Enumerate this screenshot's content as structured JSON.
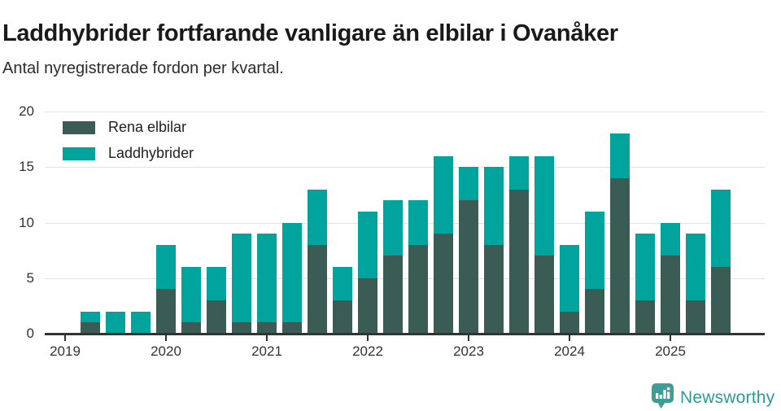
{
  "header": {
    "title": "Laddhybrider fortfarande vanligare än elbilar i Ovanåker",
    "subtitle": "Antal nyregistrerade fordon per kvartal."
  },
  "chart_data": {
    "type": "bar",
    "stacked": true,
    "title": "Laddhybrider fortfarande vanligare än elbilar i Ovanåker",
    "subtitle": "Antal nyregistrerade fordon per kvartal.",
    "categories": [
      "2019 Q1",
      "2019 Q2",
      "2019 Q3",
      "2019 Q4",
      "2020 Q1",
      "2020 Q2",
      "2020 Q3",
      "2020 Q4",
      "2021 Q1",
      "2021 Q2",
      "2021 Q3",
      "2021 Q4",
      "2022 Q1",
      "2022 Q2",
      "2022 Q3",
      "2022 Q4",
      "2023 Q1",
      "2023 Q2",
      "2023 Q3",
      "2023 Q4",
      "2024 Q1",
      "2024 Q2",
      "2024 Q3",
      "2024 Q4",
      "2025 Q1",
      "2025 Q2",
      "2025 Q3"
    ],
    "series": [
      {
        "name": "Rena elbilar",
        "color": "#3B5B55",
        "values": [
          0,
          1,
          0,
          0,
          4,
          1,
          3,
          1,
          1,
          1,
          8,
          3,
          5,
          7,
          8,
          9,
          12,
          8,
          13,
          7,
          2,
          4,
          14,
          3,
          7,
          3,
          6
        ]
      },
      {
        "name": "Laddhybrider",
        "color": "#00A49C",
        "values": [
          0,
          1,
          2,
          2,
          4,
          5,
          3,
          8,
          8,
          9,
          5,
          3,
          6,
          5,
          4,
          7,
          3,
          7,
          3,
          9,
          6,
          7,
          4,
          6,
          3,
          6,
          7
        ]
      }
    ],
    "ylim": [
      0,
      20
    ],
    "yticks": [
      0,
      5,
      10,
      15,
      20
    ],
    "year_ticks": [
      {
        "label": "2019",
        "index": 0
      },
      {
        "label": "2020",
        "index": 4
      },
      {
        "label": "2021",
        "index": 8
      },
      {
        "label": "2022",
        "index": 12
      },
      {
        "label": "2023",
        "index": 16
      },
      {
        "label": "2024",
        "index": 20
      },
      {
        "label": "2025",
        "index": 24
      }
    ],
    "grid": "horizontal",
    "legend_position": "top-left",
    "axis_color": "#333333",
    "grid_color": "#E2E2E2"
  },
  "footer": {
    "brand": "Newsworthy",
    "brand_color": "#2F9A93",
    "icon": "newsworthy-speech-bubble-chart"
  }
}
